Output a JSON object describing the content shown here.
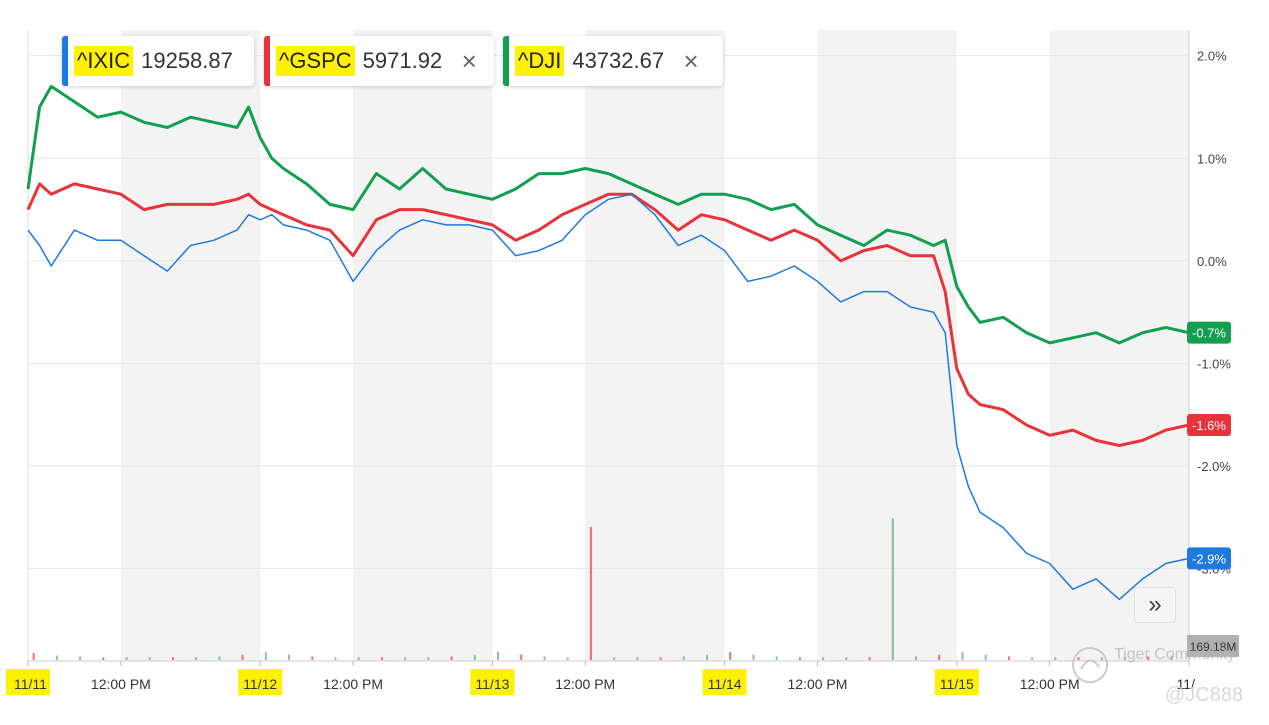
{
  "chips": [
    {
      "symbol": "^IXIC",
      "value": "19258.87",
      "color": "#1f7ae0",
      "closable": false
    },
    {
      "symbol": "^GSPC",
      "value": "5971.92",
      "color": "#e8333a",
      "closable": true
    },
    {
      "symbol": "^DJI",
      "value": "43732.67",
      "color": "#12a050",
      "closable": true
    }
  ],
  "close_glyph": "×",
  "expand_glyph": "»",
  "volume_label": "169.18M",
  "watermark": "Tiger Community",
  "signature": "@JC888",
  "chart_data": {
    "type": "line",
    "x_unit": "trading session index (0 = 11/11 open, 5 = 11/15 open)",
    "ylim": [
      -3.9,
      2.25
    ],
    "y_axis_side": "right",
    "y_ticks": [
      {
        "value": 2.0,
        "label": "2.0%"
      },
      {
        "value": 1.0,
        "label": "1.0%"
      },
      {
        "value": 0.0,
        "label": "0.0%"
      },
      {
        "value": -1.0,
        "label": "-1.0%"
      },
      {
        "value": -2.0,
        "label": "-2.0%"
      },
      {
        "value": -3.0,
        "label": "-3.0%"
      }
    ],
    "x_ticks": [
      {
        "value": 0.0,
        "label": "11/11",
        "highlight": true
      },
      {
        "value": 0.4,
        "label": "12:00 PM",
        "highlight": false
      },
      {
        "value": 1.0,
        "label": "11/12",
        "highlight": true
      },
      {
        "value": 1.4,
        "label": "12:00 PM",
        "highlight": false
      },
      {
        "value": 2.0,
        "label": "11/13",
        "highlight": true
      },
      {
        "value": 2.4,
        "label": "12:00 PM",
        "highlight": false
      },
      {
        "value": 3.0,
        "label": "11/14",
        "highlight": true
      },
      {
        "value": 3.4,
        "label": "12:00 PM",
        "highlight": false
      },
      {
        "value": 4.0,
        "label": "11/15",
        "highlight": true
      },
      {
        "value": 4.4,
        "label": "12:00 PM",
        "highlight": false
      },
      {
        "value": 5.0,
        "label": "11/",
        "highlight": false
      }
    ],
    "shaded_bands": [
      [
        0.4,
        1.0
      ],
      [
        1.4,
        2.0
      ],
      [
        2.4,
        3.0
      ],
      [
        3.4,
        4.0
      ],
      [
        4.4,
        5.0
      ]
    ],
    "series": [
      {
        "name": "^DJI",
        "color": "#12a050",
        "end_label": "-0.7%",
        "x": [
          0,
          0.05,
          0.1,
          0.2,
          0.3,
          0.4,
          0.5,
          0.6,
          0.7,
          0.8,
          0.9,
          0.95,
          1.0,
          1.05,
          1.1,
          1.2,
          1.3,
          1.4,
          1.5,
          1.6,
          1.7,
          1.8,
          1.9,
          2.0,
          2.1,
          2.2,
          2.3,
          2.4,
          2.5,
          2.6,
          2.7,
          2.8,
          2.9,
          3.0,
          3.1,
          3.2,
          3.3,
          3.4,
          3.5,
          3.6,
          3.7,
          3.8,
          3.9,
          3.95,
          4.0,
          4.05,
          4.1,
          4.2,
          4.3,
          4.4,
          4.5,
          4.6,
          4.7,
          4.8,
          4.9,
          5.0
        ],
        "y": [
          0.7,
          1.5,
          1.7,
          1.55,
          1.4,
          1.45,
          1.35,
          1.3,
          1.4,
          1.35,
          1.3,
          1.5,
          1.2,
          1.0,
          0.9,
          0.75,
          0.55,
          0.5,
          0.85,
          0.7,
          0.9,
          0.7,
          0.65,
          0.6,
          0.7,
          0.85,
          0.85,
          0.9,
          0.85,
          0.75,
          0.65,
          0.55,
          0.65,
          0.65,
          0.6,
          0.5,
          0.55,
          0.35,
          0.25,
          0.15,
          0.3,
          0.25,
          0.15,
          0.2,
          -0.25,
          -0.45,
          -0.6,
          -0.55,
          -0.7,
          -0.8,
          -0.75,
          -0.7,
          -0.8,
          -0.7,
          -0.65,
          -0.7
        ]
      },
      {
        "name": "^GSPC",
        "color": "#e8333a",
        "end_label": "-1.6%",
        "x": [
          0,
          0.05,
          0.1,
          0.2,
          0.3,
          0.4,
          0.5,
          0.6,
          0.7,
          0.8,
          0.9,
          0.95,
          1.0,
          1.05,
          1.1,
          1.2,
          1.3,
          1.4,
          1.5,
          1.6,
          1.7,
          1.8,
          1.9,
          2.0,
          2.1,
          2.2,
          2.3,
          2.4,
          2.5,
          2.6,
          2.7,
          2.8,
          2.9,
          3.0,
          3.1,
          3.2,
          3.3,
          3.4,
          3.5,
          3.6,
          3.7,
          3.8,
          3.9,
          3.95,
          4.0,
          4.05,
          4.1,
          4.2,
          4.3,
          4.4,
          4.5,
          4.6,
          4.7,
          4.8,
          4.9,
          5.0
        ],
        "y": [
          0.5,
          0.75,
          0.65,
          0.75,
          0.7,
          0.65,
          0.5,
          0.55,
          0.55,
          0.55,
          0.6,
          0.65,
          0.55,
          0.5,
          0.45,
          0.35,
          0.3,
          0.05,
          0.4,
          0.5,
          0.5,
          0.45,
          0.4,
          0.35,
          0.2,
          0.3,
          0.45,
          0.55,
          0.65,
          0.65,
          0.5,
          0.3,
          0.45,
          0.4,
          0.3,
          0.2,
          0.3,
          0.2,
          0.0,
          0.1,
          0.15,
          0.05,
          0.05,
          -0.3,
          -1.05,
          -1.3,
          -1.4,
          -1.45,
          -1.6,
          -1.7,
          -1.65,
          -1.75,
          -1.8,
          -1.75,
          -1.65,
          -1.6
        ]
      },
      {
        "name": "^IXIC",
        "color": "#1f7ae0",
        "end_label": "-2.9%",
        "x": [
          0,
          0.05,
          0.1,
          0.2,
          0.3,
          0.4,
          0.5,
          0.6,
          0.7,
          0.8,
          0.9,
          0.95,
          1.0,
          1.05,
          1.1,
          1.2,
          1.3,
          1.4,
          1.5,
          1.6,
          1.7,
          1.8,
          1.9,
          2.0,
          2.1,
          2.2,
          2.3,
          2.4,
          2.5,
          2.6,
          2.7,
          2.8,
          2.9,
          3.0,
          3.1,
          3.2,
          3.3,
          3.4,
          3.5,
          3.6,
          3.7,
          3.8,
          3.9,
          3.95,
          4.0,
          4.05,
          4.1,
          4.2,
          4.3,
          4.4,
          4.5,
          4.6,
          4.7,
          4.8,
          4.9,
          5.0
        ],
        "y": [
          0.3,
          0.15,
          -0.05,
          0.3,
          0.2,
          0.2,
          0.05,
          -0.1,
          0.15,
          0.2,
          0.3,
          0.45,
          0.4,
          0.45,
          0.35,
          0.3,
          0.2,
          -0.2,
          0.1,
          0.3,
          0.4,
          0.35,
          0.35,
          0.3,
          0.05,
          0.1,
          0.2,
          0.45,
          0.6,
          0.65,
          0.45,
          0.15,
          0.25,
          0.1,
          -0.2,
          -0.15,
          -0.05,
          -0.2,
          -0.4,
          -0.3,
          -0.3,
          -0.45,
          -0.5,
          -0.7,
          -1.8,
          -2.2,
          -2.45,
          -2.6,
          -2.85,
          -2.95,
          -3.2,
          -3.1,
          -3.3,
          -3.1,
          -2.95,
          -2.9
        ]
      }
    ],
    "volume": {
      "x": [
        0.02,
        0.12,
        0.22,
        0.32,
        0.42,
        0.52,
        0.62,
        0.72,
        0.82,
        0.92,
        1.02,
        1.12,
        1.22,
        1.32,
        1.42,
        1.52,
        1.62,
        1.72,
        1.82,
        1.92,
        2.02,
        2.12,
        2.22,
        2.32,
        2.42,
        2.52,
        2.62,
        2.72,
        2.82,
        2.92,
        3.02,
        3.12,
        3.22,
        3.32,
        3.42,
        3.52,
        3.62,
        3.72,
        3.82,
        3.92,
        4.02,
        4.12,
        4.22,
        4.32,
        4.42,
        4.52,
        4.62,
        4.72,
        4.82,
        4.92
      ],
      "values": [
        8,
        5,
        4,
        3,
        3,
        3,
        3,
        3,
        4,
        6,
        9,
        6,
        4,
        3,
        3,
        3,
        3,
        3,
        4,
        6,
        9,
        6,
        4,
        3,
        150,
        3,
        3,
        3,
        4,
        6,
        9,
        6,
        4,
        3,
        3,
        3,
        3,
        160,
        4,
        6,
        9,
        6,
        4,
        3,
        3,
        3,
        3,
        3,
        4,
        5
      ],
      "max": 169.18,
      "unit": "M"
    }
  }
}
